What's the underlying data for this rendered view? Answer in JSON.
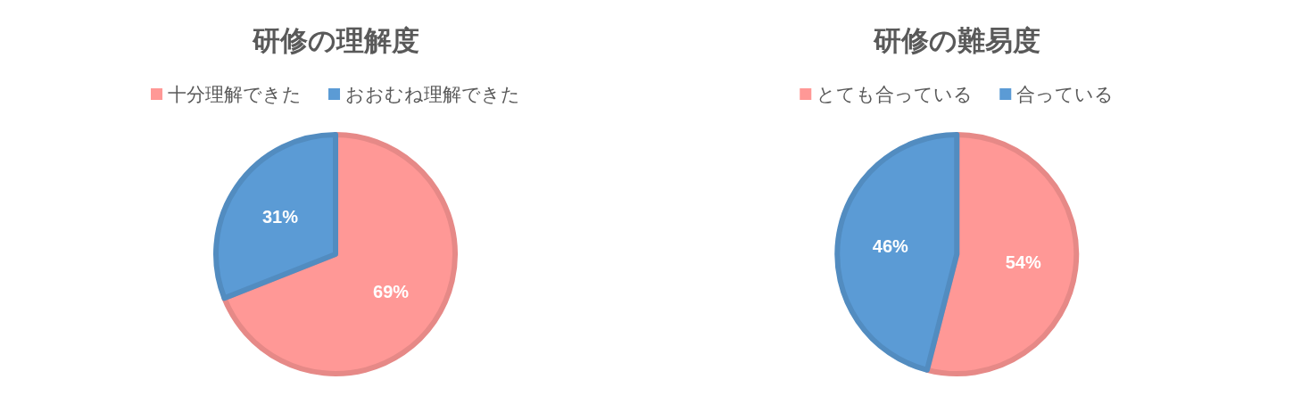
{
  "chart_data": [
    {
      "type": "pie",
      "title": "研修の理解度",
      "categories": [
        "十分理解できた",
        "おおむね理解できた"
      ],
      "values": [
        69,
        31
      ],
      "colors": [
        "#ff9896",
        "#5b9bd5"
      ],
      "value_labels": [
        "69%",
        "31%"
      ],
      "legend": "top"
    },
    {
      "type": "pie",
      "title": "研修の難易度",
      "categories": [
        "とても合っている",
        "合っている"
      ],
      "values": [
        54,
        46
      ],
      "colors": [
        "#ff9896",
        "#5b9bd5"
      ],
      "value_labels": [
        "54%",
        "46%"
      ],
      "legend": "top"
    }
  ]
}
